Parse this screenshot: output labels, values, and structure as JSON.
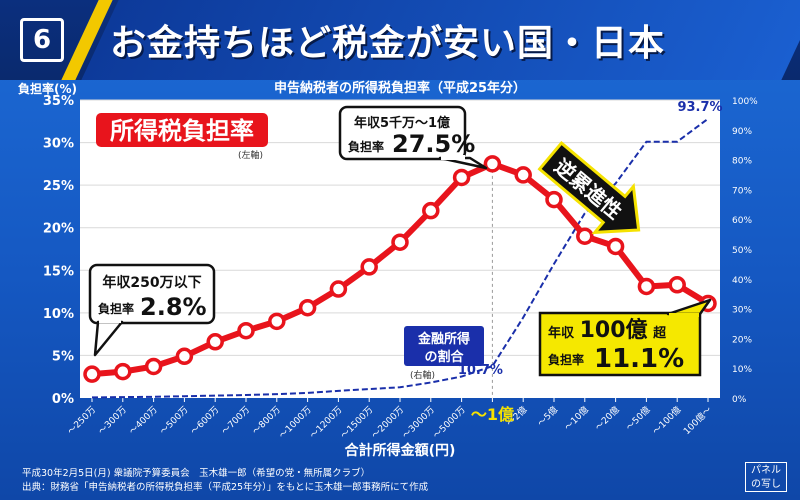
{
  "header": {
    "badge": "6",
    "title": "お金持ちほど税金が安い国・日本"
  },
  "footer": {
    "line1": "平成30年2月5日(月) 衆議院予算委員会　玉木雄一郎（希望の党・無所属クラブ）",
    "line2": "出典：財務省「申告納税者の所得税負担率（平成25年分）」をもとに玉木雄一郎事務所にて作成",
    "panel_note_line1": "パネル",
    "panel_note_line2": "の写し"
  },
  "chart_data": {
    "type": "line",
    "title": "申告納税者の所得税負担率（平成25年分）",
    "ylabel_left": "負担率(%)",
    "xlabel": "合計所得金額(円)",
    "categories": [
      "〜250万",
      "〜300万",
      "〜400万",
      "〜500万",
      "〜600万",
      "〜700万",
      "〜800万",
      "〜1000万",
      "〜1200万",
      "〜1500万",
      "〜2000万",
      "〜3000万",
      "〜5000万",
      "〜1億",
      "〜2億",
      "〜5億",
      "〜10億",
      "〜20億",
      "〜50億",
      "〜100億",
      "100億〜"
    ],
    "yticks_left": [
      "0%",
      "5%",
      "10%",
      "15%",
      "20%",
      "25%",
      "30%",
      "35%"
    ],
    "yticks_right": [
      "0%",
      "10%",
      "20%",
      "30%",
      "40%",
      "50%",
      "60%",
      "70%",
      "80%",
      "90%",
      "100%"
    ],
    "ylim_left": [
      0,
      35
    ],
    "ylim_right": [
      0,
      100
    ],
    "series": [
      {
        "name": "所得税負担率",
        "axis": "left",
        "color": "#e8141c",
        "values": [
          2.8,
          3.1,
          3.7,
          4.9,
          6.6,
          7.9,
          9.0,
          10.6,
          12.8,
          15.4,
          18.3,
          22.0,
          25.9,
          27.5,
          26.2,
          23.3,
          19.0,
          17.8,
          13.1,
          13.3,
          11.1
        ]
      },
      {
        "name": "金融所得の割合",
        "axis": "right",
        "color": "#1a2faa",
        "values": [
          0.2,
          0.3,
          0.4,
          0.6,
          0.8,
          1.0,
          1.3,
          1.7,
          2.4,
          3.0,
          3.6,
          5.2,
          7.2,
          10.7,
          27.0,
          45.0,
          62.0,
          72.0,
          86.0,
          86.0,
          93.7
        ]
      }
    ],
    "labels": {
      "series1_tag": "所得税負担率",
      "series1_axis_note": "(左軸)",
      "series2_tag_line1": "金融所得",
      "series2_tag_line2": "の割合",
      "series2_axis_note": "(右軸)",
      "series2_value_at_1oku": "10.7%",
      "series2_last_value": "93.7%",
      "x_highlight": "〜1億",
      "peak_box_line1": "年収5千万〜1億",
      "peak_box_prefix": "負担率",
      "peak_box_value": "27.5%",
      "low_box_line1": "年収250万以下",
      "low_box_prefix": "負担率",
      "low_box_value": "2.8%",
      "top_box_line1_a": "年収",
      "top_box_line1_b": "100億",
      "top_box_line1_c": "超",
      "top_box_prefix": "負担率",
      "top_box_value": "11.1%",
      "regressive_arrow": "逆累進性"
    }
  }
}
